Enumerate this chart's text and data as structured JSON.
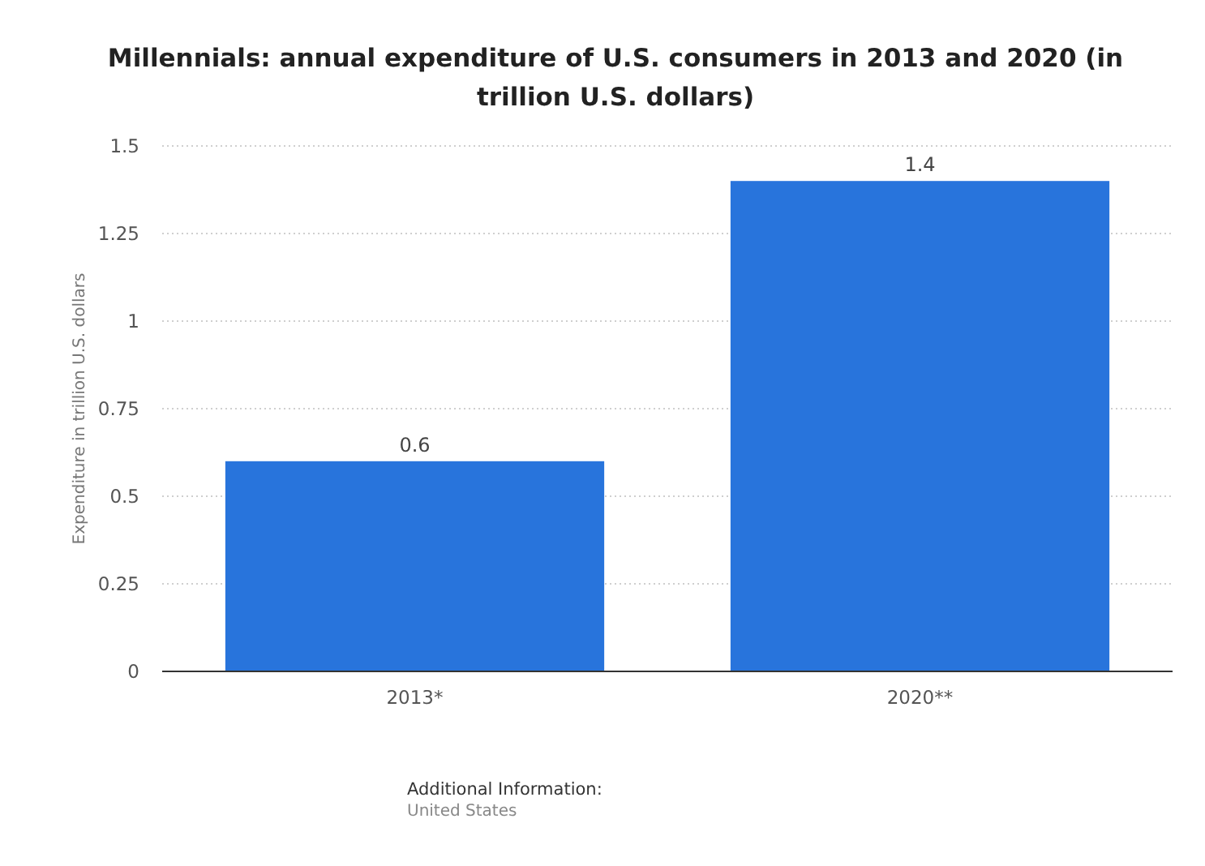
{
  "chart_data": {
    "type": "bar",
    "title": "Millennials: annual expenditure of U.S. consumers in 2013 and 2020 (in trillion U.S. dollars)",
    "ylabel": "Expenditure in trillion U.S. dollars",
    "categories": [
      "2013*",
      "2020**"
    ],
    "values": [
      0.6,
      1.4
    ],
    "color": "#2874dc",
    "ylim": [
      0,
      1.5
    ],
    "yticks": [
      0,
      0.25,
      0.5,
      0.75,
      1,
      1.25,
      1.5
    ],
    "grid": "y",
    "data_labels": true,
    "annotations": [
      "Additional Information:",
      "United States"
    ]
  }
}
